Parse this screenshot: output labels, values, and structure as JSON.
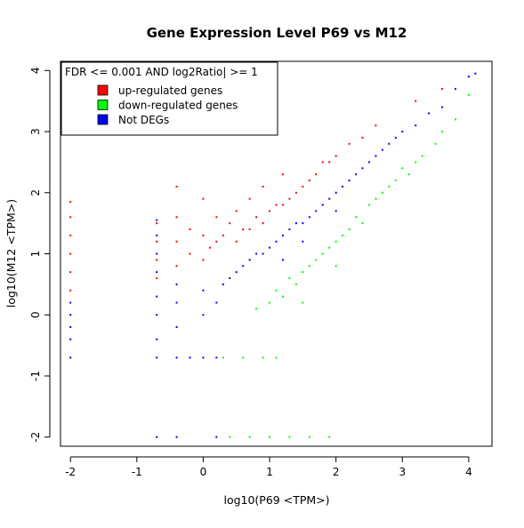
{
  "chart_data": {
    "type": "scatter",
    "title": "Gene Expression Level P69 vs M12",
    "xlabel": "log10(P69 <TPM>)",
    "ylabel": "log10(M12 <TPM>)",
    "xlim": [
      -2.15,
      4.35
    ],
    "ylim": [
      -2.15,
      4.15
    ],
    "x_ticks": [
      -2,
      -1,
      0,
      1,
      2,
      3,
      4
    ],
    "y_ticks": [
      -2,
      -1,
      0,
      1,
      2,
      3,
      4
    ],
    "x_tick_labels": [
      "-2",
      "-1",
      "0",
      "1",
      "2",
      "3",
      "4"
    ],
    "y_tick_labels": [
      "-2",
      "-1",
      "0",
      "1",
      "2",
      "3",
      "4"
    ],
    "grid": false,
    "legend": {
      "placement": "top-left",
      "title": "FDR <=  0.001  AND  log2Ratio| >=  1",
      "entries": [
        {
          "label": "up-regulated genes",
          "color": "#ff0000"
        },
        {
          "label": "down-regulated genes",
          "color": "#00ff00"
        },
        {
          "label": "Not DEGs",
          "color": "#0000ff"
        }
      ]
    },
    "series": [
      {
        "name": "up-regulated genes",
        "color": "#ff0000",
        "points": [
          [
            -2.0,
            0.4
          ],
          [
            -2.0,
            0.7
          ],
          [
            -2.0,
            1.0
          ],
          [
            -2.0,
            1.3
          ],
          [
            -2.0,
            1.6
          ],
          [
            -2.0,
            1.85
          ],
          [
            -0.7,
            0.6
          ],
          [
            -0.7,
            0.9
          ],
          [
            -0.7,
            1.2
          ],
          [
            -0.7,
            1.5
          ],
          [
            -0.4,
            0.8
          ],
          [
            -0.4,
            1.2
          ],
          [
            -0.4,
            1.6
          ],
          [
            -0.4,
            2.1
          ],
          [
            -0.2,
            1.0
          ],
          [
            -0.2,
            1.4
          ],
          [
            0.0,
            0.9
          ],
          [
            0.0,
            1.3
          ],
          [
            0.0,
            1.9
          ],
          [
            0.1,
            1.1
          ],
          [
            0.2,
            1.2
          ],
          [
            0.2,
            1.6
          ],
          [
            0.3,
            1.3
          ],
          [
            0.4,
            1.5
          ],
          [
            0.5,
            1.2
          ],
          [
            0.5,
            1.7
          ],
          [
            0.6,
            1.4
          ],
          [
            0.7,
            1.4
          ],
          [
            0.7,
            1.9
          ],
          [
            0.8,
            1.6
          ],
          [
            0.9,
            1.5
          ],
          [
            0.9,
            2.1
          ],
          [
            1.0,
            1.7
          ],
          [
            1.1,
            1.8
          ],
          [
            1.2,
            1.8
          ],
          [
            1.2,
            2.3
          ],
          [
            1.3,
            1.9
          ],
          [
            1.4,
            2.0
          ],
          [
            1.5,
            2.1
          ],
          [
            1.6,
            2.2
          ],
          [
            1.7,
            2.3
          ],
          [
            1.8,
            2.5
          ],
          [
            1.9,
            2.5
          ],
          [
            2.0,
            2.6
          ],
          [
            2.2,
            2.8
          ],
          [
            2.4,
            2.9
          ],
          [
            2.6,
            3.1
          ],
          [
            3.2,
            3.5
          ],
          [
            3.6,
            3.7
          ]
        ]
      },
      {
        "name": "down-regulated genes",
        "color": "#00ff00",
        "points": [
          [
            0.3,
            -0.7
          ],
          [
            0.6,
            -0.7
          ],
          [
            0.9,
            -0.7
          ],
          [
            1.1,
            -0.7
          ],
          [
            0.4,
            -2.0
          ],
          [
            0.7,
            -2.0
          ],
          [
            1.0,
            -2.0
          ],
          [
            1.3,
            -2.0
          ],
          [
            1.6,
            -2.0
          ],
          [
            1.9,
            -2.0
          ],
          [
            0.8,
            0.1
          ],
          [
            1.0,
            0.2
          ],
          [
            1.1,
            0.4
          ],
          [
            1.2,
            0.3
          ],
          [
            1.3,
            0.6
          ],
          [
            1.4,
            0.5
          ],
          [
            1.5,
            0.7
          ],
          [
            1.6,
            0.8
          ],
          [
            1.7,
            0.9
          ],
          [
            1.8,
            1.0
          ],
          [
            1.9,
            1.1
          ],
          [
            2.0,
            1.2
          ],
          [
            2.1,
            1.3
          ],
          [
            2.2,
            1.4
          ],
          [
            2.3,
            1.6
          ],
          [
            2.4,
            1.5
          ],
          [
            2.5,
            1.8
          ],
          [
            2.6,
            1.9
          ],
          [
            2.7,
            2.0
          ],
          [
            2.8,
            2.1
          ],
          [
            2.9,
            2.2
          ],
          [
            3.0,
            2.4
          ],
          [
            3.1,
            2.3
          ],
          [
            3.2,
            2.5
          ],
          [
            3.3,
            2.6
          ],
          [
            3.5,
            2.8
          ],
          [
            3.6,
            3.0
          ],
          [
            3.8,
            3.2
          ],
          [
            4.0,
            3.6
          ],
          [
            1.5,
            0.2
          ],
          [
            2.0,
            0.8
          ]
        ]
      },
      {
        "name": "Not DEGs",
        "color": "#0000ff",
        "points": [
          [
            -2.0,
            -0.7
          ],
          [
            -2.0,
            -0.4
          ],
          [
            -2.0,
            -0.2
          ],
          [
            -2.0,
            0.0
          ],
          [
            -2.0,
            0.2
          ],
          [
            -0.7,
            -2.0
          ],
          [
            -0.7,
            -0.7
          ],
          [
            -0.7,
            -0.4
          ],
          [
            -0.7,
            0.0
          ],
          [
            -0.7,
            0.3
          ],
          [
            -0.7,
            0.7
          ],
          [
            -0.7,
            1.0
          ],
          [
            -0.7,
            1.3
          ],
          [
            -0.7,
            1.55
          ],
          [
            -0.4,
            -2.0
          ],
          [
            -0.4,
            -0.7
          ],
          [
            -0.4,
            -0.2
          ],
          [
            -0.4,
            0.2
          ],
          [
            -0.4,
            0.5
          ],
          [
            -0.2,
            -0.7
          ],
          [
            0.0,
            -0.7
          ],
          [
            0.0,
            0.0
          ],
          [
            0.0,
            0.4
          ],
          [
            0.2,
            -2.0
          ],
          [
            0.2,
            -0.7
          ],
          [
            0.2,
            0.2
          ],
          [
            0.3,
            0.5
          ],
          [
            0.4,
            0.6
          ],
          [
            0.5,
            0.7
          ],
          [
            0.6,
            0.8
          ],
          [
            0.7,
            0.9
          ],
          [
            0.8,
            1.0
          ],
          [
            0.9,
            1.0
          ],
          [
            1.0,
            1.1
          ],
          [
            1.1,
            1.2
          ],
          [
            1.2,
            1.3
          ],
          [
            1.3,
            1.4
          ],
          [
            1.4,
            1.5
          ],
          [
            1.5,
            1.5
          ],
          [
            1.6,
            1.6
          ],
          [
            1.7,
            1.7
          ],
          [
            1.8,
            1.8
          ],
          [
            1.9,
            1.9
          ],
          [
            2.0,
            2.0
          ],
          [
            2.1,
            2.1
          ],
          [
            2.2,
            2.2
          ],
          [
            2.3,
            2.3
          ],
          [
            2.4,
            2.4
          ],
          [
            2.5,
            2.5
          ],
          [
            2.6,
            2.6
          ],
          [
            2.7,
            2.7
          ],
          [
            2.8,
            2.8
          ],
          [
            2.9,
            2.9
          ],
          [
            3.0,
            3.0
          ],
          [
            3.2,
            3.1
          ],
          [
            3.4,
            3.3
          ],
          [
            3.6,
            3.4
          ],
          [
            3.8,
            3.7
          ],
          [
            4.0,
            3.9
          ],
          [
            4.1,
            3.95
          ],
          [
            1.2,
            0.9
          ],
          [
            1.5,
            1.2
          ],
          [
            2.0,
            1.7
          ]
        ]
      }
    ]
  }
}
